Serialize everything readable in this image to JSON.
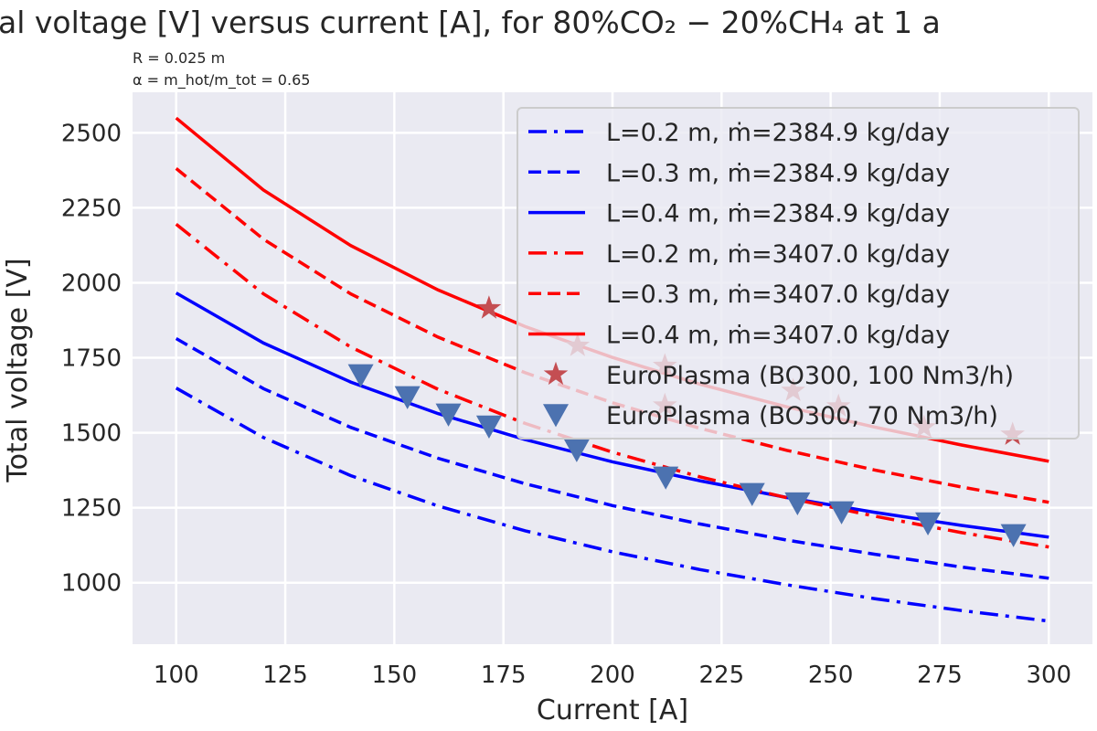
{
  "chart_data": {
    "type": "line",
    "title": "al voltage [V] versus current [A], for 80%CO₂ − 20%CH₄ at 1 a",
    "annotations": [
      "R = 0.025 m",
      "α = m_hot/m_tot = 0.65"
    ],
    "xlabel": "Current [A]",
    "ylabel": "Total voltage [V]",
    "xlim": [
      90,
      310
    ],
    "ylim": [
      795,
      2635
    ],
    "xticks": [
      100,
      125,
      150,
      175,
      200,
      225,
      250,
      275,
      300
    ],
    "yticks": [
      1000,
      1250,
      1500,
      1750,
      2000,
      2250,
      2500
    ],
    "grid": true,
    "legend_position": "top-right",
    "x": [
      100,
      120,
      140,
      160,
      180,
      200,
      220,
      240,
      260,
      280,
      300
    ],
    "series": [
      {
        "name": "L=0.2 m, ṁ=2384.9 kg/day",
        "color": "#0000ff",
        "style": "dashdot",
        "values": [
          1649,
          1484,
          1357,
          1256,
          1173,
          1103,
          1044,
          993,
          947,
          907,
          872
        ]
      },
      {
        "name": "L=0.3 m, ṁ=2384.9 kg/day",
        "color": "#0000ff",
        "style": "dashed",
        "values": [
          1814,
          1647,
          1518,
          1415,
          1330,
          1257,
          1196,
          1142,
          1095,
          1052,
          1015
        ]
      },
      {
        "name": "L=0.4 m, ṁ=2384.9 kg/day",
        "color": "#0000ff",
        "style": "solid",
        "values": [
          1966,
          1799,
          1669,
          1564,
          1477,
          1403,
          1340,
          1284,
          1235,
          1191,
          1152
        ]
      },
      {
        "name": "L=0.2 m, ṁ=3407.0 kg/day",
        "color": "#ff0000",
        "style": "dashdot",
        "values": [
          2195,
          1963,
          1786,
          1645,
          1531,
          1435,
          1353,
          1283,
          1222,
          1167,
          1119
        ]
      },
      {
        "name": "L=0.3 m, ṁ=3407.0 kg/day",
        "color": "#ff0000",
        "style": "dashed",
        "values": [
          2381,
          2145,
          1963,
          1819,
          1700,
          1600,
          1515,
          1441,
          1376,
          1319,
          1268
        ]
      },
      {
        "name": "L=0.4 m, ṁ=3407.0 kg/day",
        "color": "#ff0000",
        "style": "solid",
        "values": [
          2549,
          2309,
          2124,
          1976,
          1854,
          1751,
          1662,
          1586,
          1519,
          1459,
          1405
        ]
      }
    ],
    "scatter": [
      {
        "name": "EuroPlasma (BO300, 100 Nm3/h)",
        "marker": "star",
        "color": "#c44e52",
        "points": [
          [
            171.7,
            1915
          ],
          [
            192,
            1790
          ],
          [
            212,
            1723
          ],
          [
            212,
            1591
          ],
          [
            241.4,
            1640
          ],
          [
            251.8,
            1588
          ],
          [
            271.4,
            1518
          ],
          [
            291.7,
            1494
          ]
        ]
      },
      {
        "name": "EuroPlasma (BO300, 70 Nm3/h)",
        "marker": "triangle-down",
        "color": "#4c72b0",
        "points": [
          [
            142.3,
            1692
          ],
          [
            153,
            1619
          ],
          [
            162.4,
            1561
          ],
          [
            171.7,
            1521
          ],
          [
            191.8,
            1442
          ],
          [
            212.2,
            1351
          ],
          [
            232,
            1296
          ],
          [
            242.4,
            1265
          ],
          [
            252.5,
            1235
          ],
          [
            272.3,
            1198
          ],
          [
            291.9,
            1159
          ]
        ]
      }
    ]
  }
}
